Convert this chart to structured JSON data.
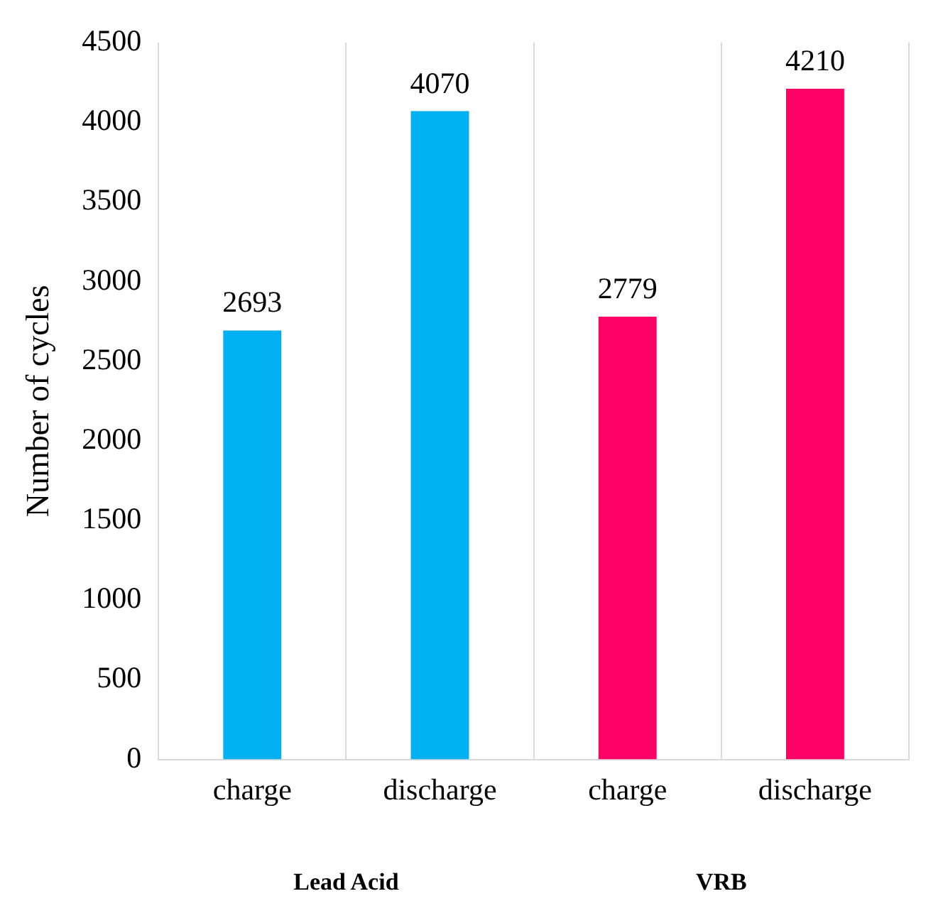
{
  "chart_data": {
    "type": "bar",
    "ylabel": "Number of cycles",
    "categories": [
      "charge",
      "discharge",
      "charge",
      "discharge"
    ],
    "values": [
      2693,
      4070,
      2779,
      4210
    ],
    "colors": [
      "#00b0f0",
      "#00b0f0",
      "#ff0066",
      "#ff0066"
    ],
    "ylim": [
      0,
      4500
    ],
    "yticks": [
      0,
      500,
      1000,
      1500,
      2000,
      2500,
      3000,
      3500,
      4000,
      4500
    ],
    "grid": "x",
    "data_labels": true,
    "annotations": [
      "Lead Acid",
      "VRB"
    ]
  }
}
